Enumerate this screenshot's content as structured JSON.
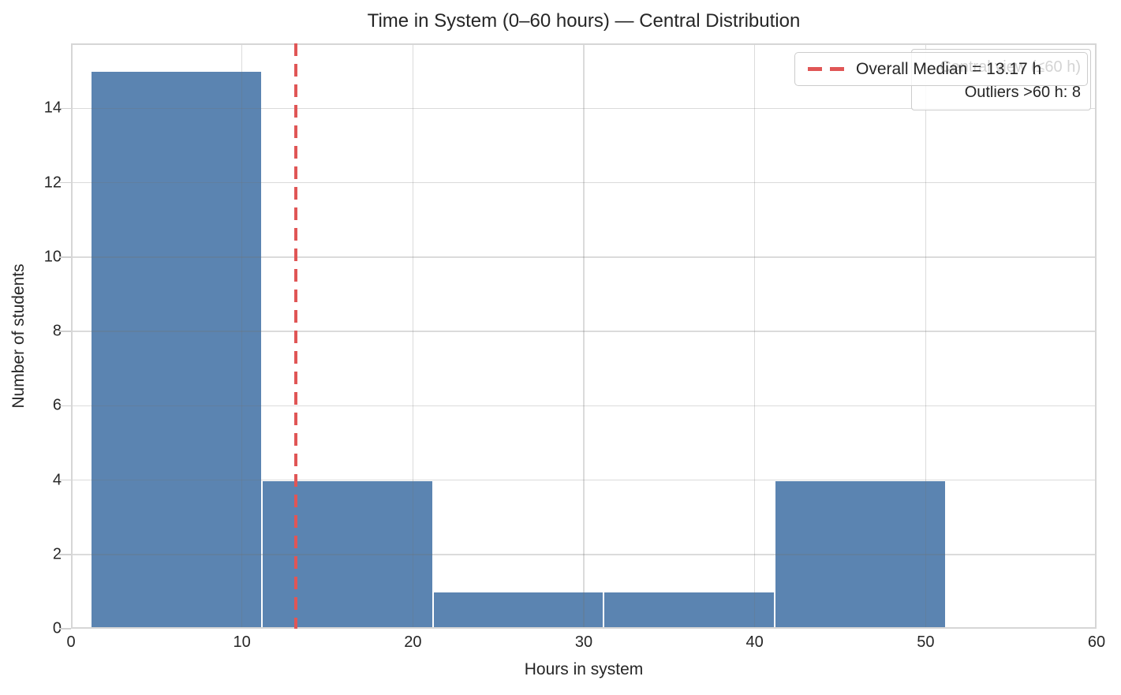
{
  "chart_data": {
    "type": "histogram",
    "title": "Time in System (0–60 hours) — Central Distribution",
    "xlabel": "Hours in system",
    "ylabel": "Number of students",
    "xlim": [
      0,
      60
    ],
    "ylim": [
      0,
      15.75
    ],
    "xticks": [
      0,
      10,
      20,
      30,
      40,
      50,
      60
    ],
    "yticks": [
      0,
      2,
      4,
      6,
      8,
      10,
      12,
      14
    ],
    "bin_edges": [
      1.17,
      11.17,
      21.17,
      31.17,
      41.17,
      51.17
    ],
    "counts": [
      15,
      4,
      1,
      1,
      4
    ],
    "median_line": {
      "value": 13.17,
      "style": "dashed",
      "color": "#e05656"
    },
    "legend": {
      "position": "upper right",
      "entries": [
        {
          "label": "Overall Median = 13.17 h",
          "style": "dashed",
          "color": "#e05656"
        }
      ]
    },
    "annotation": {
      "lines": [
        "Central view (≤60 h)",
        "Outliers >60 h: 8"
      ]
    },
    "grid": true,
    "colors": {
      "bar": "#5b84b1",
      "bar_edge": "#ffffff",
      "median": "#e05656",
      "grid": "#d9d9d9",
      "axes_border": "#d6d6d6",
      "text": "#262626"
    }
  }
}
